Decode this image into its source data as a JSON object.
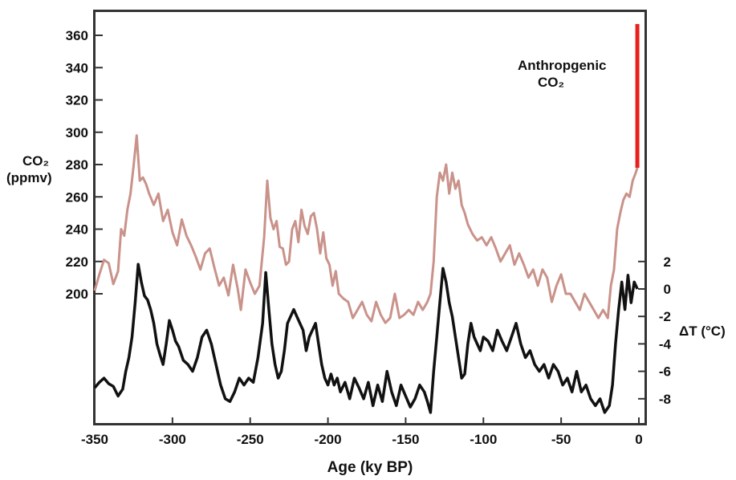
{
  "chart_data": {
    "type": "line",
    "xlabel": "Age (ky BP)",
    "xlim": [
      -350,
      0
    ],
    "x_ticks": [
      "-350",
      "-300",
      "-250",
      "-200",
      "-150",
      "-100",
      "-50",
      "0"
    ],
    "left_axis": {
      "label_line1": "CO₂",
      "label_line2": "(ppmv)",
      "ticks": [
        "200",
        "220",
        "240",
        "260",
        "280",
        "300",
        "320",
        "340",
        "360"
      ]
    },
    "right_axis": {
      "label": "ΔT (°C)",
      "ticks": [
        "2",
        "0",
        "-2",
        "-4",
        "-6",
        "-8"
      ]
    },
    "annotation": {
      "line1": "Anthropgenic",
      "line2": "CO₂",
      "bar_color": "#e8201e",
      "bar_x": -1,
      "bar_from": 278,
      "bar_to": 367
    },
    "series": [
      {
        "axis": "left",
        "color": "#c9928a",
        "x": [
          -350,
          -347,
          -344,
          -341,
          -338,
          -335,
          -333,
          -331,
          -329,
          -327,
          -325,
          -323,
          -321,
          -319,
          -317,
          -315,
          -312,
          -309,
          -306,
          -303,
          -300,
          -297,
          -294,
          -291,
          -288,
          -285,
          -282,
          -279,
          -276,
          -273,
          -270,
          -267,
          -264,
          -261,
          -258,
          -256,
          -253,
          -250,
          -247,
          -244,
          -241,
          -239,
          -237,
          -235,
          -233,
          -231,
          -229,
          -227,
          -225,
          -223,
          -221,
          -219,
          -217,
          -215,
          -213,
          -211,
          -209,
          -207,
          -205,
          -203,
          -201,
          -199,
          -197,
          -195,
          -193,
          -190,
          -187,
          -184,
          -181,
          -178,
          -175,
          -172,
          -169,
          -166,
          -163,
          -160,
          -157,
          -154,
          -151,
          -148,
          -145,
          -142,
          -139,
          -136,
          -134,
          -132,
          -130,
          -128,
          -126,
          -124,
          -122,
          -120,
          -118,
          -116,
          -114,
          -112,
          -110,
          -107,
          -104,
          -101,
          -98,
          -95,
          -92,
          -89,
          -86,
          -83,
          -80,
          -77,
          -74,
          -71,
          -68,
          -65,
          -62,
          -59,
          -56,
          -53,
          -50,
          -47,
          -44,
          -41,
          -38,
          -35,
          -32,
          -29,
          -26,
          -23,
          -20,
          -18,
          -16,
          -14,
          -12,
          -10,
          -8,
          -6,
          -4,
          -2,
          -1
        ],
        "values": [
          202,
          212,
          221,
          219,
          206,
          214,
          240,
          236,
          252,
          262,
          279,
          298,
          270,
          272,
          268,
          262,
          255,
          262,
          245,
          252,
          238,
          230,
          246,
          236,
          230,
          223,
          215,
          225,
          228,
          216,
          205,
          210,
          199,
          218,
          203,
          190,
          215,
          207,
          200,
          205,
          235,
          270,
          247,
          240,
          245,
          229,
          228,
          218,
          220,
          240,
          245,
          232,
          252,
          242,
          237,
          248,
          250,
          240,
          225,
          238,
          222,
          218,
          205,
          214,
          200,
          197,
          195,
          185,
          190,
          195,
          187,
          183,
          195,
          187,
          182,
          185,
          200,
          185,
          187,
          190,
          187,
          195,
          190,
          195,
          200,
          220,
          260,
          275,
          270,
          280,
          262,
          275,
          265,
          270,
          255,
          250,
          243,
          237,
          233,
          235,
          230,
          235,
          228,
          220,
          225,
          230,
          218,
          225,
          218,
          210,
          215,
          205,
          215,
          210,
          195,
          205,
          212,
          200,
          200,
          195,
          190,
          200,
          195,
          190,
          185,
          190,
          185,
          205,
          215,
          240,
          250,
          258,
          262,
          260,
          270,
          275,
          278
        ]
      },
      {
        "axis": "right",
        "color": "#111111",
        "x": [
          -350,
          -347,
          -344,
          -341,
          -338,
          -335,
          -332,
          -330,
          -328,
          -326,
          -324,
          -322,
          -320,
          -318,
          -316,
          -314,
          -312,
          -310,
          -308,
          -306,
          -304,
          -302,
          -300,
          -298,
          -296,
          -293,
          -290,
          -287,
          -284,
          -281,
          -278,
          -275,
          -272,
          -269,
          -266,
          -263,
          -260,
          -257,
          -254,
          -251,
          -248,
          -245,
          -242,
          -240,
          -238,
          -236,
          -234,
          -232,
          -230,
          -228,
          -226,
          -224,
          -222,
          -220,
          -218,
          -216,
          -214,
          -212,
          -210,
          -208,
          -206,
          -204,
          -202,
          -200,
          -198,
          -196,
          -194,
          -192,
          -189,
          -186,
          -183,
          -180,
          -177,
          -174,
          -171,
          -168,
          -165,
          -162,
          -159,
          -156,
          -153,
          -150,
          -147,
          -144,
          -141,
          -138,
          -136,
          -134,
          -132,
          -130,
          -128,
          -126,
          -124,
          -122,
          -120,
          -118,
          -116,
          -114,
          -112,
          -110,
          -108,
          -106,
          -104,
          -102,
          -100,
          -97,
          -94,
          -91,
          -88,
          -85,
          -82,
          -79,
          -76,
          -73,
          -70,
          -67,
          -64,
          -61,
          -58,
          -55,
          -52,
          -49,
          -46,
          -43,
          -40,
          -37,
          -34,
          -31,
          -28,
          -25,
          -22,
          -19,
          -17,
          -15,
          -13,
          -11,
          -9,
          -7,
          -5,
          -3,
          -1
        ],
        "values": [
          -7.2,
          -6.8,
          -6.5,
          -6.9,
          -7.1,
          -7.8,
          -7.3,
          -6.0,
          -5.0,
          -3.5,
          -1.0,
          1.8,
          0.5,
          -0.5,
          -0.8,
          -1.5,
          -2.5,
          -4.0,
          -4.8,
          -5.5,
          -4.0,
          -2.3,
          -3.0,
          -3.8,
          -4.2,
          -5.2,
          -5.5,
          -6.0,
          -5.0,
          -3.5,
          -3.0,
          -4.0,
          -5.5,
          -7.0,
          -8.0,
          -8.2,
          -7.5,
          -6.5,
          -7.0,
          -6.5,
          -6.8,
          -5.0,
          -2.5,
          1.2,
          -1.5,
          -4.0,
          -5.5,
          -6.5,
          -6.0,
          -4.5,
          -2.5,
          -2.0,
          -1.5,
          -2.0,
          -2.5,
          -3.0,
          -4.5,
          -3.5,
          -3.0,
          -2.5,
          -4.0,
          -5.5,
          -6.5,
          -7.0,
          -6.2,
          -7.0,
          -6.5,
          -7.5,
          -6.8,
          -8.0,
          -6.5,
          -7.2,
          -8.0,
          -6.8,
          -8.5,
          -7.0,
          -8.2,
          -6.0,
          -7.5,
          -8.5,
          -7.0,
          -7.8,
          -8.6,
          -8.0,
          -7.0,
          -7.5,
          -8.2,
          -9.0,
          -6.0,
          -3.5,
          -1.0,
          1.5,
          0.5,
          -1.0,
          -2.0,
          -3.5,
          -5.0,
          -6.5,
          -6.2,
          -4.0,
          -2.5,
          -3.5,
          -4.0,
          -4.5,
          -3.5,
          -3.8,
          -4.5,
          -3.0,
          -3.8,
          -4.5,
          -3.5,
          -2.5,
          -4.0,
          -5.0,
          -4.5,
          -5.5,
          -6.0,
          -5.5,
          -6.5,
          -5.5,
          -6.0,
          -7.0,
          -6.5,
          -7.5,
          -6.0,
          -7.5,
          -7.0,
          -8.0,
          -8.5,
          -8.0,
          -9.0,
          -8.5,
          -7.0,
          -4.0,
          -1.5,
          0.5,
          -1.5,
          1.0,
          -1.0,
          0.5,
          0.0
        ]
      }
    ]
  }
}
